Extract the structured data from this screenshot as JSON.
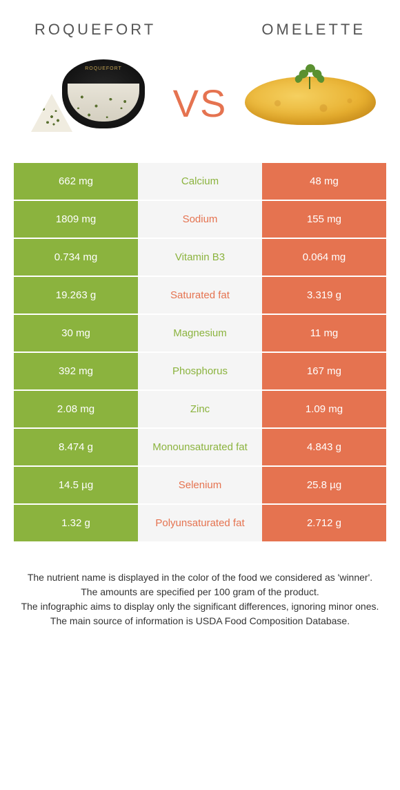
{
  "header": {
    "left_title": "Roquefort",
    "right_title": "Omelette"
  },
  "vs_label": "VS",
  "colors": {
    "left_bg": "#8bb33e",
    "right_bg": "#e57350",
    "mid_bg": "#f5f5f5",
    "left_text": "#ffffff",
    "right_text": "#ffffff",
    "mid_winner_left": "#8bb33e",
    "mid_winner_right": "#e57350"
  },
  "rows": [
    {
      "left": "662 mg",
      "label": "Calcium",
      "right": "48 mg",
      "winner": "left"
    },
    {
      "left": "1809 mg",
      "label": "Sodium",
      "right": "155 mg",
      "winner": "right"
    },
    {
      "left": "0.734 mg",
      "label": "Vitamin B3",
      "right": "0.064 mg",
      "winner": "left"
    },
    {
      "left": "19.263 g",
      "label": "Saturated fat",
      "right": "3.319 g",
      "winner": "right"
    },
    {
      "left": "30 mg",
      "label": "Magnesium",
      "right": "11 mg",
      "winner": "left"
    },
    {
      "left": "392 mg",
      "label": "Phosphorus",
      "right": "167 mg",
      "winner": "left"
    },
    {
      "left": "2.08 mg",
      "label": "Zinc",
      "right": "1.09 mg",
      "winner": "left"
    },
    {
      "left": "8.474 g",
      "label": "Monounsaturated fat",
      "right": "4.843 g",
      "winner": "left"
    },
    {
      "left": "14.5 µg",
      "label": "Selenium",
      "right": "25.8 µg",
      "winner": "right"
    },
    {
      "left": "1.32 g",
      "label": "Polyunsaturated fat",
      "right": "2.712 g",
      "winner": "right"
    }
  ],
  "footer": {
    "line1": "The nutrient name is displayed in the color of the food we considered as 'winner'.",
    "line2": "The amounts are specified per 100 gram of the product.",
    "line3": "The infographic aims to display only the significant differences, ignoring minor ones.",
    "line4": "The main source of information is USDA Food Composition Database."
  }
}
